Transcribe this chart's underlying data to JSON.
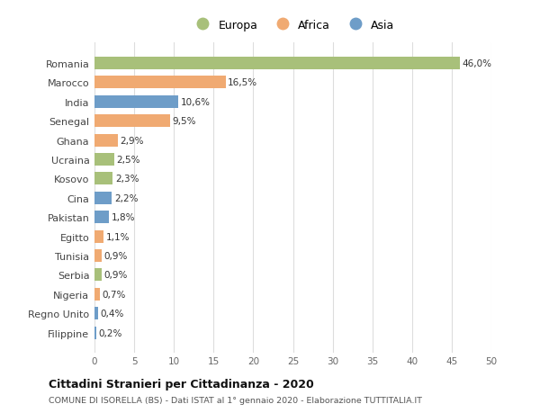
{
  "categories": [
    "Filippine",
    "Regno Unito",
    "Nigeria",
    "Serbia",
    "Tunisia",
    "Egitto",
    "Pakistan",
    "Cina",
    "Kosovo",
    "Ucraina",
    "Ghana",
    "Senegal",
    "India",
    "Marocco",
    "Romania"
  ],
  "values": [
    0.2,
    0.4,
    0.7,
    0.9,
    0.9,
    1.1,
    1.8,
    2.2,
    2.3,
    2.5,
    2.9,
    9.5,
    10.6,
    16.5,
    46.0
  ],
  "labels": [
    "0,2%",
    "0,4%",
    "0,7%",
    "0,9%",
    "0,9%",
    "1,1%",
    "1,8%",
    "2,2%",
    "2,3%",
    "2,5%",
    "2,9%",
    "9,5%",
    "10,6%",
    "16,5%",
    "46,0%"
  ],
  "colors": [
    "#6e9dc8",
    "#6e9dc8",
    "#f0aa72",
    "#a8c07a",
    "#f0aa72",
    "#f0aa72",
    "#6e9dc8",
    "#6e9dc8",
    "#a8c07a",
    "#a8c07a",
    "#f0aa72",
    "#f0aa72",
    "#6e9dc8",
    "#f0aa72",
    "#a8c07a"
  ],
  "legend_labels": [
    "Europa",
    "Africa",
    "Asia"
  ],
  "legend_colors": [
    "#a8c07a",
    "#f0aa72",
    "#6e9dc8"
  ],
  "title": "Cittadini Stranieri per Cittadinanza - 2020",
  "subtitle": "COMUNE DI ISORELLA (BS) - Dati ISTAT al 1° gennaio 2020 - Elaborazione TUTTITALIA.IT",
  "xlim": [
    0,
    50
  ],
  "xticks": [
    0,
    5,
    10,
    15,
    20,
    25,
    30,
    35,
    40,
    45,
    50
  ],
  "bg_color": "#ffffff",
  "grid_color": "#dddddd",
  "bar_height": 0.65
}
